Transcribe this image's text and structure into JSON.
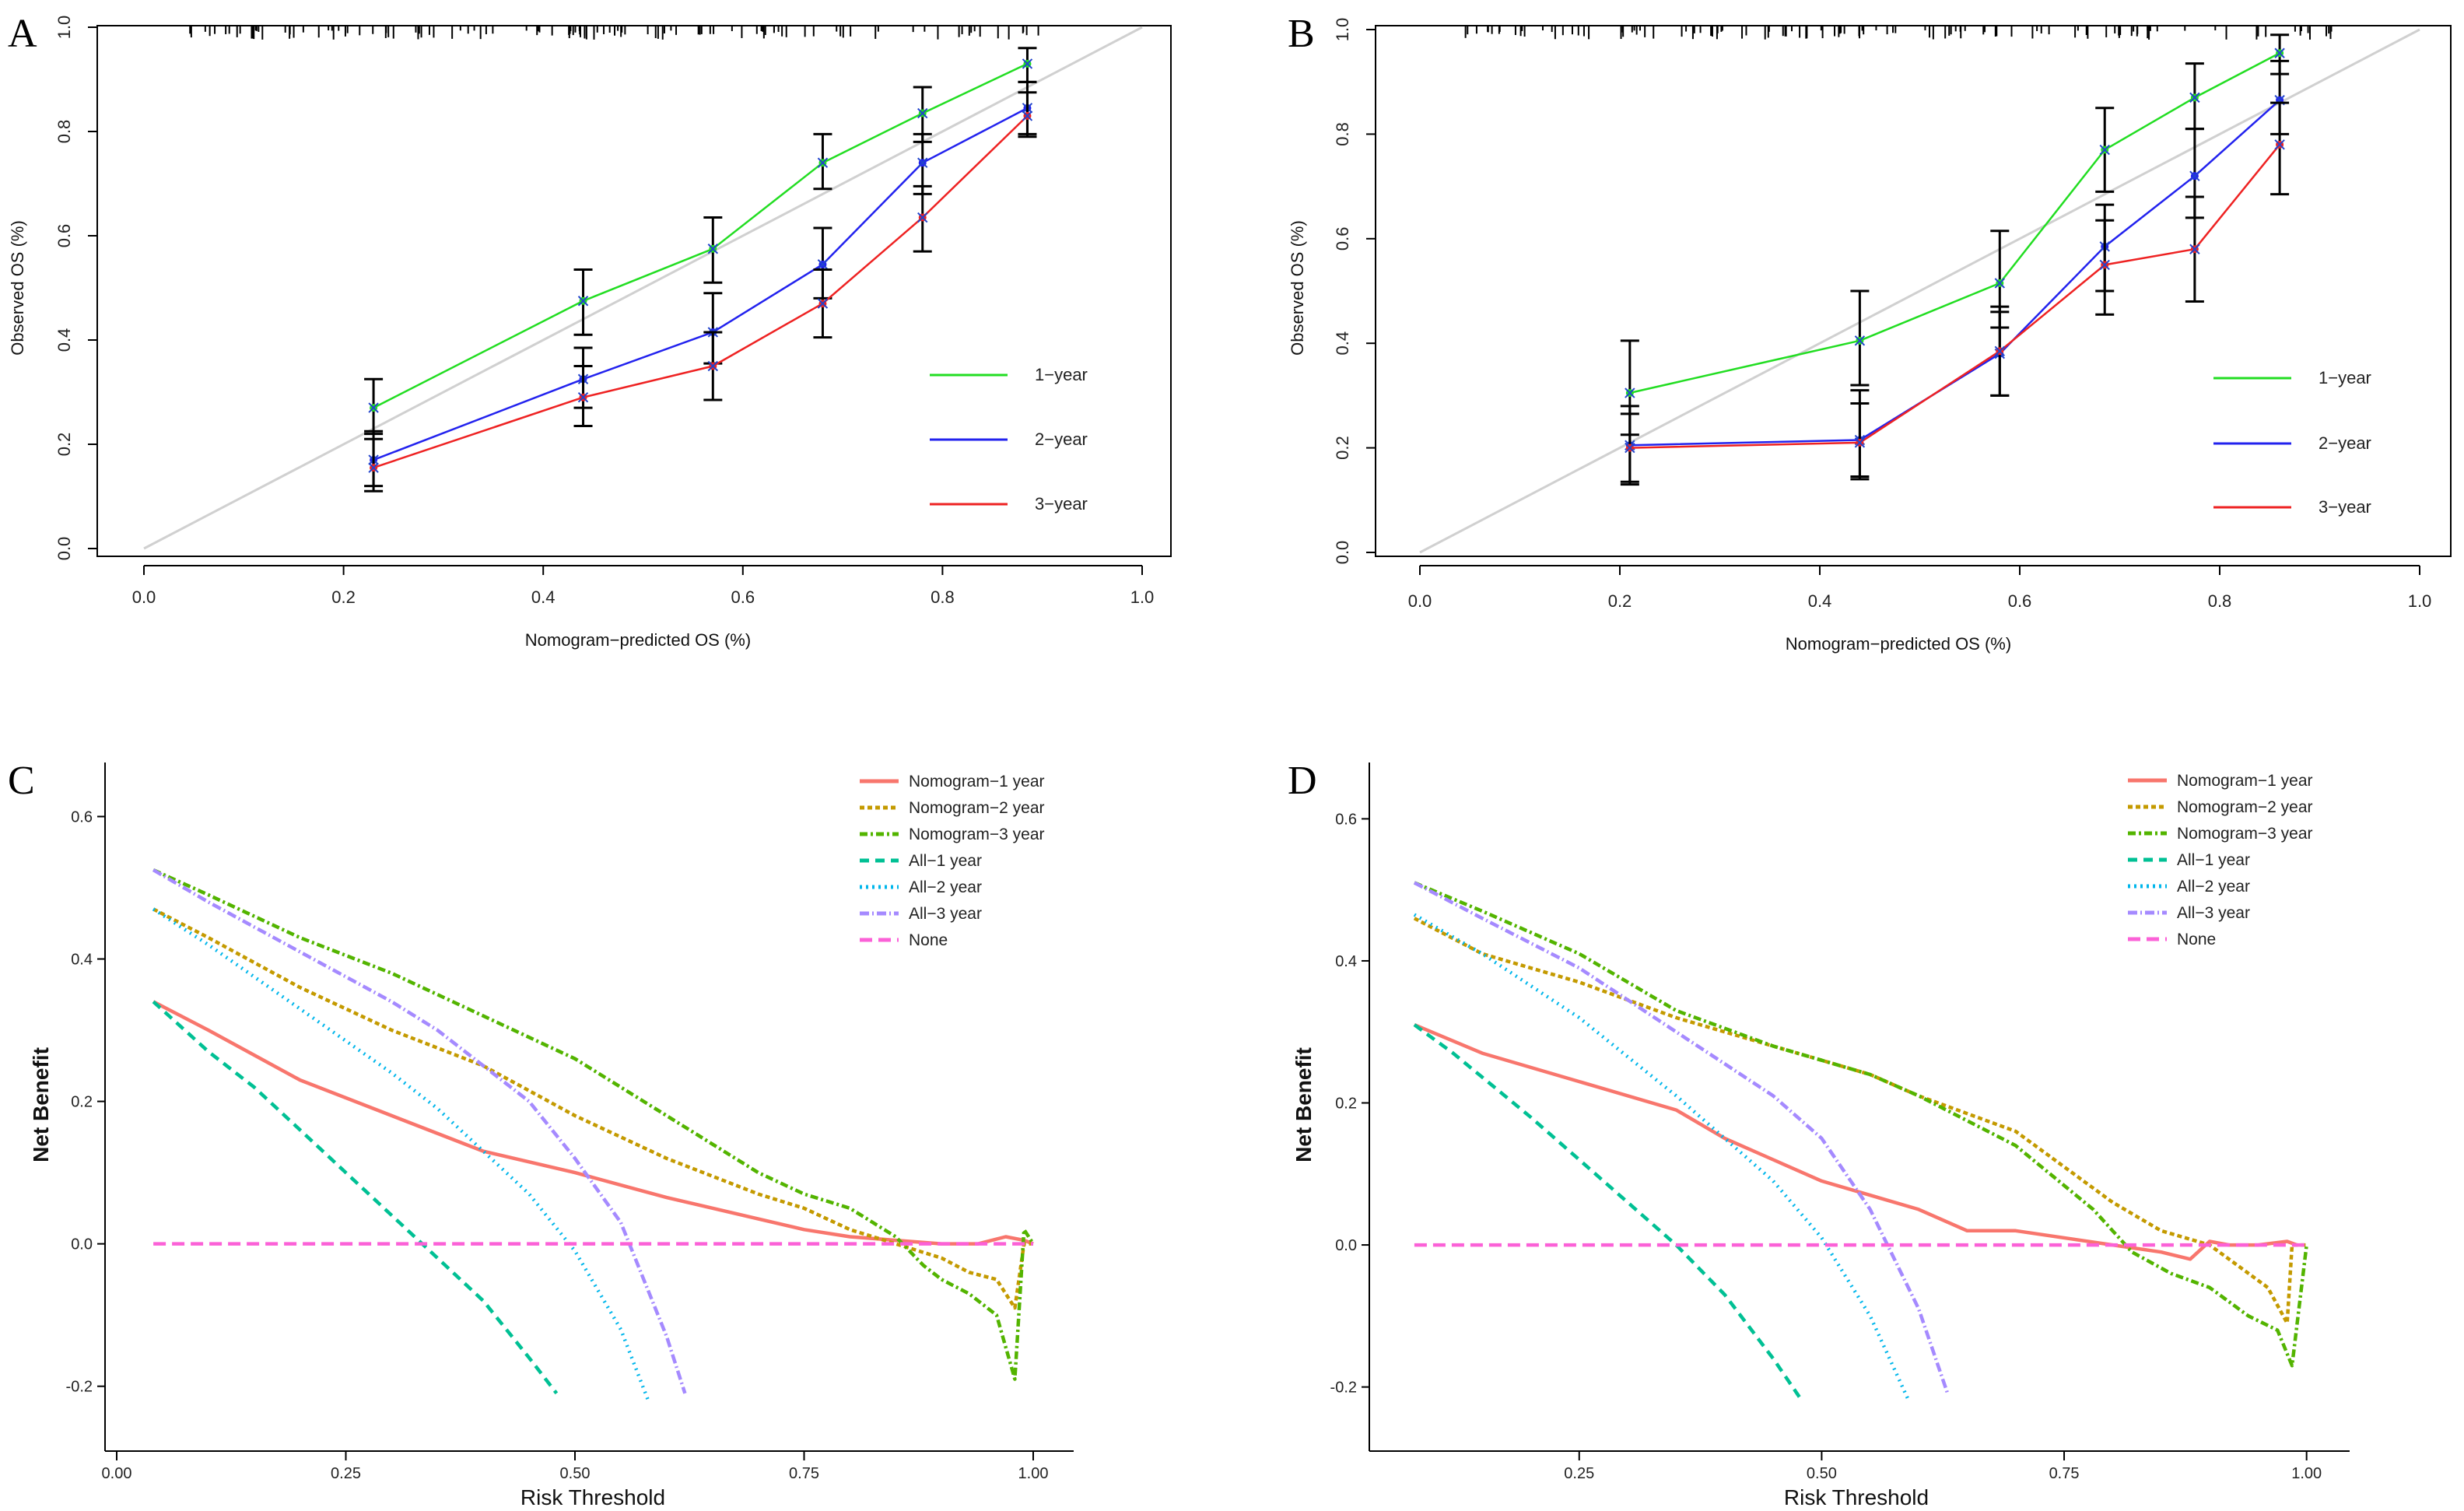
{
  "chart_data": [
    {
      "id": "A",
      "type": "line",
      "panel_label": "A",
      "xlabel": "Nomogram−predicted OS (%)",
      "ylabel": "Observed OS (%)",
      "xlim": [
        0,
        1
      ],
      "ylim": [
        0,
        1
      ],
      "xticks": [
        "0.0",
        "0.2",
        "0.4",
        "0.6",
        "0.8",
        "1.0"
      ],
      "yticks": [
        "0.0",
        "0.2",
        "0.4",
        "0.6",
        "0.8",
        "1.0"
      ],
      "legend_position": "right",
      "diagonal_reference": true,
      "series": [
        {
          "name": "1−year",
          "color": "#22dd22",
          "x": [
            0.23,
            0.44,
            0.57,
            0.68,
            0.78,
            0.885
          ],
          "y": [
            0.27,
            0.475,
            0.575,
            0.74,
            0.835,
            0.93
          ],
          "lo": [
            0.22,
            0.41,
            0.51,
            0.69,
            0.78,
            0.895
          ],
          "hi": [
            0.325,
            0.535,
            0.635,
            0.795,
            0.885,
            0.96
          ]
        },
        {
          "name": "2−year",
          "color": "#2222ee",
          "x": [
            0.23,
            0.44,
            0.57,
            0.68,
            0.78,
            0.885
          ],
          "y": [
            0.17,
            0.325,
            0.415,
            0.545,
            0.74,
            0.845
          ],
          "lo": [
            0.12,
            0.27,
            0.355,
            0.48,
            0.68,
            0.795
          ],
          "hi": [
            0.225,
            0.385,
            0.49,
            0.615,
            0.795,
            0.895
          ]
        },
        {
          "name": "3−year",
          "color": "#ee2222",
          "x": [
            0.23,
            0.44,
            0.57,
            0.68,
            0.78,
            0.885
          ],
          "y": [
            0.155,
            0.29,
            0.35,
            0.47,
            0.635,
            0.83
          ],
          "lo": [
            0.11,
            0.235,
            0.285,
            0.405,
            0.57,
            0.79
          ],
          "hi": [
            0.21,
            0.35,
            0.415,
            0.535,
            0.695,
            0.875
          ]
        }
      ]
    },
    {
      "id": "B",
      "type": "line",
      "panel_label": "B",
      "xlabel": "Nomogram−predicted OS (%)",
      "ylabel": "Observed OS (%)",
      "xlim": [
        0,
        1
      ],
      "ylim": [
        0,
        1
      ],
      "xticks": [
        "0.0",
        "0.2",
        "0.4",
        "0.6",
        "0.8",
        "1.0"
      ],
      "yticks": [
        "0.0",
        "0.2",
        "0.4",
        "0.6",
        "0.8",
        "1.0"
      ],
      "legend_position": "right",
      "diagonal_reference": true,
      "series": [
        {
          "name": "1−year",
          "color": "#22dd22",
          "x": [
            0.21,
            0.44,
            0.58,
            0.685,
            0.775,
            0.86
          ],
          "y": [
            0.305,
            0.405,
            0.515,
            0.77,
            0.87,
            0.955
          ],
          "lo": [
            0.225,
            0.32,
            0.43,
            0.69,
            0.81,
            0.915
          ],
          "hi": [
            0.405,
            0.5,
            0.615,
            0.85,
            0.935,
            0.99
          ]
        },
        {
          "name": "2−year",
          "color": "#2222ee",
          "x": [
            0.21,
            0.44,
            0.58,
            0.685,
            0.775,
            0.86
          ],
          "y": [
            0.205,
            0.215,
            0.38,
            0.585,
            0.72,
            0.865
          ],
          "lo": [
            0.135,
            0.145,
            0.3,
            0.5,
            0.64,
            0.8
          ],
          "hi": [
            0.28,
            0.31,
            0.47,
            0.665,
            0.81,
            0.94
          ]
        },
        {
          "name": "3−year",
          "color": "#ee2222",
          "x": [
            0.21,
            0.44,
            0.58,
            0.685,
            0.775,
            0.86
          ],
          "y": [
            0.2,
            0.21,
            0.385,
            0.55,
            0.58,
            0.78
          ],
          "lo": [
            0.13,
            0.14,
            0.3,
            0.455,
            0.48,
            0.685
          ],
          "hi": [
            0.265,
            0.285,
            0.46,
            0.635,
            0.68,
            0.86
          ]
        }
      ]
    },
    {
      "id": "C",
      "type": "line",
      "panel_label": "C",
      "xlabel": "Risk Threshold",
      "ylabel": "Net Benefit",
      "xlim": [
        0,
        1
      ],
      "ylim": [
        -0.22,
        0.63
      ],
      "xticks": [
        "0.00",
        "0.25",
        "0.50",
        "0.75",
        "1.00"
      ],
      "yticks": [
        "-0.2",
        "0.0",
        "0.2",
        "0.4",
        "0.6"
      ],
      "legend_position": "top-right",
      "series": [
        {
          "name": "Nomogram−1 year",
          "color": "#f8766d",
          "dash": "solid",
          "x": [
            0.04,
            0.1,
            0.2,
            0.3,
            0.4,
            0.5,
            0.6,
            0.7,
            0.75,
            0.8,
            0.85,
            0.9,
            0.94,
            0.97,
            0.99,
            1.0
          ],
          "y": [
            0.34,
            0.3,
            0.23,
            0.18,
            0.13,
            0.1,
            0.065,
            0.035,
            0.02,
            0.01,
            0.005,
            0.0,
            0.0,
            0.01,
            0.005,
            0.0
          ]
        },
        {
          "name": "Nomogram−2 year",
          "color": "#c49a00",
          "dash": "6,4",
          "x": [
            0.04,
            0.1,
            0.2,
            0.3,
            0.4,
            0.5,
            0.6,
            0.7,
            0.75,
            0.8,
            0.85,
            0.9,
            0.93,
            0.96,
            0.98,
            0.99,
            1.0
          ],
          "y": [
            0.47,
            0.43,
            0.36,
            0.3,
            0.25,
            0.18,
            0.12,
            0.07,
            0.05,
            0.02,
            0.0,
            -0.02,
            -0.04,
            -0.05,
            -0.09,
            0.0,
            0.0
          ]
        },
        {
          "name": "Nomogram−3 year",
          "color": "#53b400",
          "dash": "10,4,3,4",
          "x": [
            0.04,
            0.1,
            0.2,
            0.3,
            0.4,
            0.5,
            0.6,
            0.7,
            0.75,
            0.8,
            0.85,
            0.88,
            0.9,
            0.93,
            0.96,
            0.98,
            0.99,
            1.0
          ],
          "y": [
            0.525,
            0.49,
            0.43,
            0.38,
            0.32,
            0.26,
            0.18,
            0.1,
            0.07,
            0.05,
            0.01,
            -0.03,
            -0.05,
            -0.07,
            -0.1,
            -0.19,
            0.02,
            0.0
          ]
        },
        {
          "name": "All−1 year",
          "color": "#00c094",
          "dash": "12,8",
          "x": [
            0.04,
            0.1,
            0.15,
            0.2,
            0.25,
            0.3,
            0.35,
            0.4,
            0.45,
            0.48
          ],
          "y": [
            0.34,
            0.27,
            0.22,
            0.16,
            0.1,
            0.04,
            -0.02,
            -0.08,
            -0.16,
            -0.21
          ]
        },
        {
          "name": "All−2 year",
          "color": "#00b6eb",
          "dash": "2,6",
          "x": [
            0.04,
            0.1,
            0.2,
            0.3,
            0.35,
            0.4,
            0.45,
            0.5,
            0.55,
            0.58
          ],
          "y": [
            0.47,
            0.42,
            0.33,
            0.24,
            0.19,
            0.13,
            0.07,
            -0.01,
            -0.12,
            -0.22
          ]
        },
        {
          "name": "All−3 year",
          "color": "#a58aff",
          "dash": "12,4,2,4",
          "x": [
            0.04,
            0.1,
            0.2,
            0.3,
            0.35,
            0.4,
            0.45,
            0.5,
            0.55,
            0.6,
            0.62
          ],
          "y": [
            0.525,
            0.48,
            0.41,
            0.34,
            0.3,
            0.25,
            0.2,
            0.12,
            0.03,
            -0.13,
            -0.21
          ]
        },
        {
          "name": "None",
          "color": "#fb61d7",
          "dash": "16,8",
          "x": [
            0.04,
            1.0
          ],
          "y": [
            0.0,
            0.0
          ]
        }
      ]
    },
    {
      "id": "D",
      "type": "line",
      "panel_label": "D",
      "xlabel": "Risk Threshold",
      "ylabel": "Net Benefit",
      "xlim": [
        0.04,
        1.05
      ],
      "ylim": [
        -0.23,
        0.63
      ],
      "xticks": [
        "0.25",
        "0.50",
        "0.75",
        "1.00"
      ],
      "yticks": [
        "-0.2",
        "0.0",
        "0.2",
        "0.4",
        "0.6"
      ],
      "legend_position": "top-right",
      "series": [
        {
          "name": "Nomogram−1 year",
          "color": "#f8766d",
          "dash": "solid",
          "x": [
            0.08,
            0.15,
            0.25,
            0.35,
            0.4,
            0.45,
            0.5,
            0.6,
            0.65,
            0.7,
            0.8,
            0.85,
            0.88,
            0.9,
            0.92,
            0.95,
            0.98,
            0.99
          ],
          "y": [
            0.31,
            0.27,
            0.23,
            0.19,
            0.15,
            0.12,
            0.09,
            0.05,
            0.02,
            0.02,
            0.0,
            -0.01,
            -0.02,
            0.005,
            0.0,
            0.0,
            0.005,
            0.0
          ]
        },
        {
          "name": "Nomogram−2 year",
          "color": "#c49a00",
          "dash": "6,4",
          "x": [
            0.08,
            0.15,
            0.25,
            0.35,
            0.45,
            0.5,
            0.55,
            0.6,
            0.7,
            0.8,
            0.85,
            0.9,
            0.93,
            0.96,
            0.98,
            0.985,
            1.0
          ],
          "y": [
            0.46,
            0.41,
            0.37,
            0.32,
            0.28,
            0.26,
            0.24,
            0.21,
            0.16,
            0.06,
            0.02,
            0.0,
            -0.03,
            -0.06,
            -0.11,
            0.0,
            0.0
          ]
        },
        {
          "name": "Nomogram−3 year",
          "color": "#53b400",
          "dash": "10,4,3,4",
          "x": [
            0.08,
            0.15,
            0.25,
            0.35,
            0.45,
            0.5,
            0.55,
            0.6,
            0.7,
            0.78,
            0.82,
            0.86,
            0.9,
            0.94,
            0.97,
            0.985,
            1.0
          ],
          "y": [
            0.51,
            0.47,
            0.41,
            0.33,
            0.28,
            0.26,
            0.24,
            0.21,
            0.14,
            0.05,
            -0.01,
            -0.04,
            -0.06,
            -0.1,
            -0.12,
            -0.17,
            0.0
          ]
        },
        {
          "name": "All−1 year",
          "color": "#00c094",
          "dash": "12,8",
          "x": [
            0.08,
            0.12,
            0.2,
            0.25,
            0.3,
            0.35,
            0.4,
            0.45,
            0.48
          ],
          "y": [
            0.31,
            0.27,
            0.18,
            0.12,
            0.06,
            0.0,
            -0.07,
            -0.16,
            -0.22
          ]
        },
        {
          "name": "All−2 year",
          "color": "#00b6eb",
          "dash": "2,6",
          "x": [
            0.08,
            0.15,
            0.25,
            0.35,
            0.4,
            0.45,
            0.5,
            0.55,
            0.59
          ],
          "y": [
            0.465,
            0.41,
            0.32,
            0.21,
            0.15,
            0.09,
            0.01,
            -0.1,
            -0.22
          ]
        },
        {
          "name": "All−3 year",
          "color": "#a58aff",
          "dash": "12,4,2,4",
          "x": [
            0.08,
            0.15,
            0.25,
            0.35,
            0.45,
            0.5,
            0.55,
            0.6,
            0.63
          ],
          "y": [
            0.51,
            0.46,
            0.39,
            0.3,
            0.21,
            0.15,
            0.05,
            -0.09,
            -0.21
          ]
        },
        {
          "name": "None",
          "color": "#fb61d7",
          "dash": "16,8",
          "x": [
            0.08,
            1.0
          ],
          "y": [
            0.0,
            0.0
          ]
        }
      ]
    }
  ]
}
